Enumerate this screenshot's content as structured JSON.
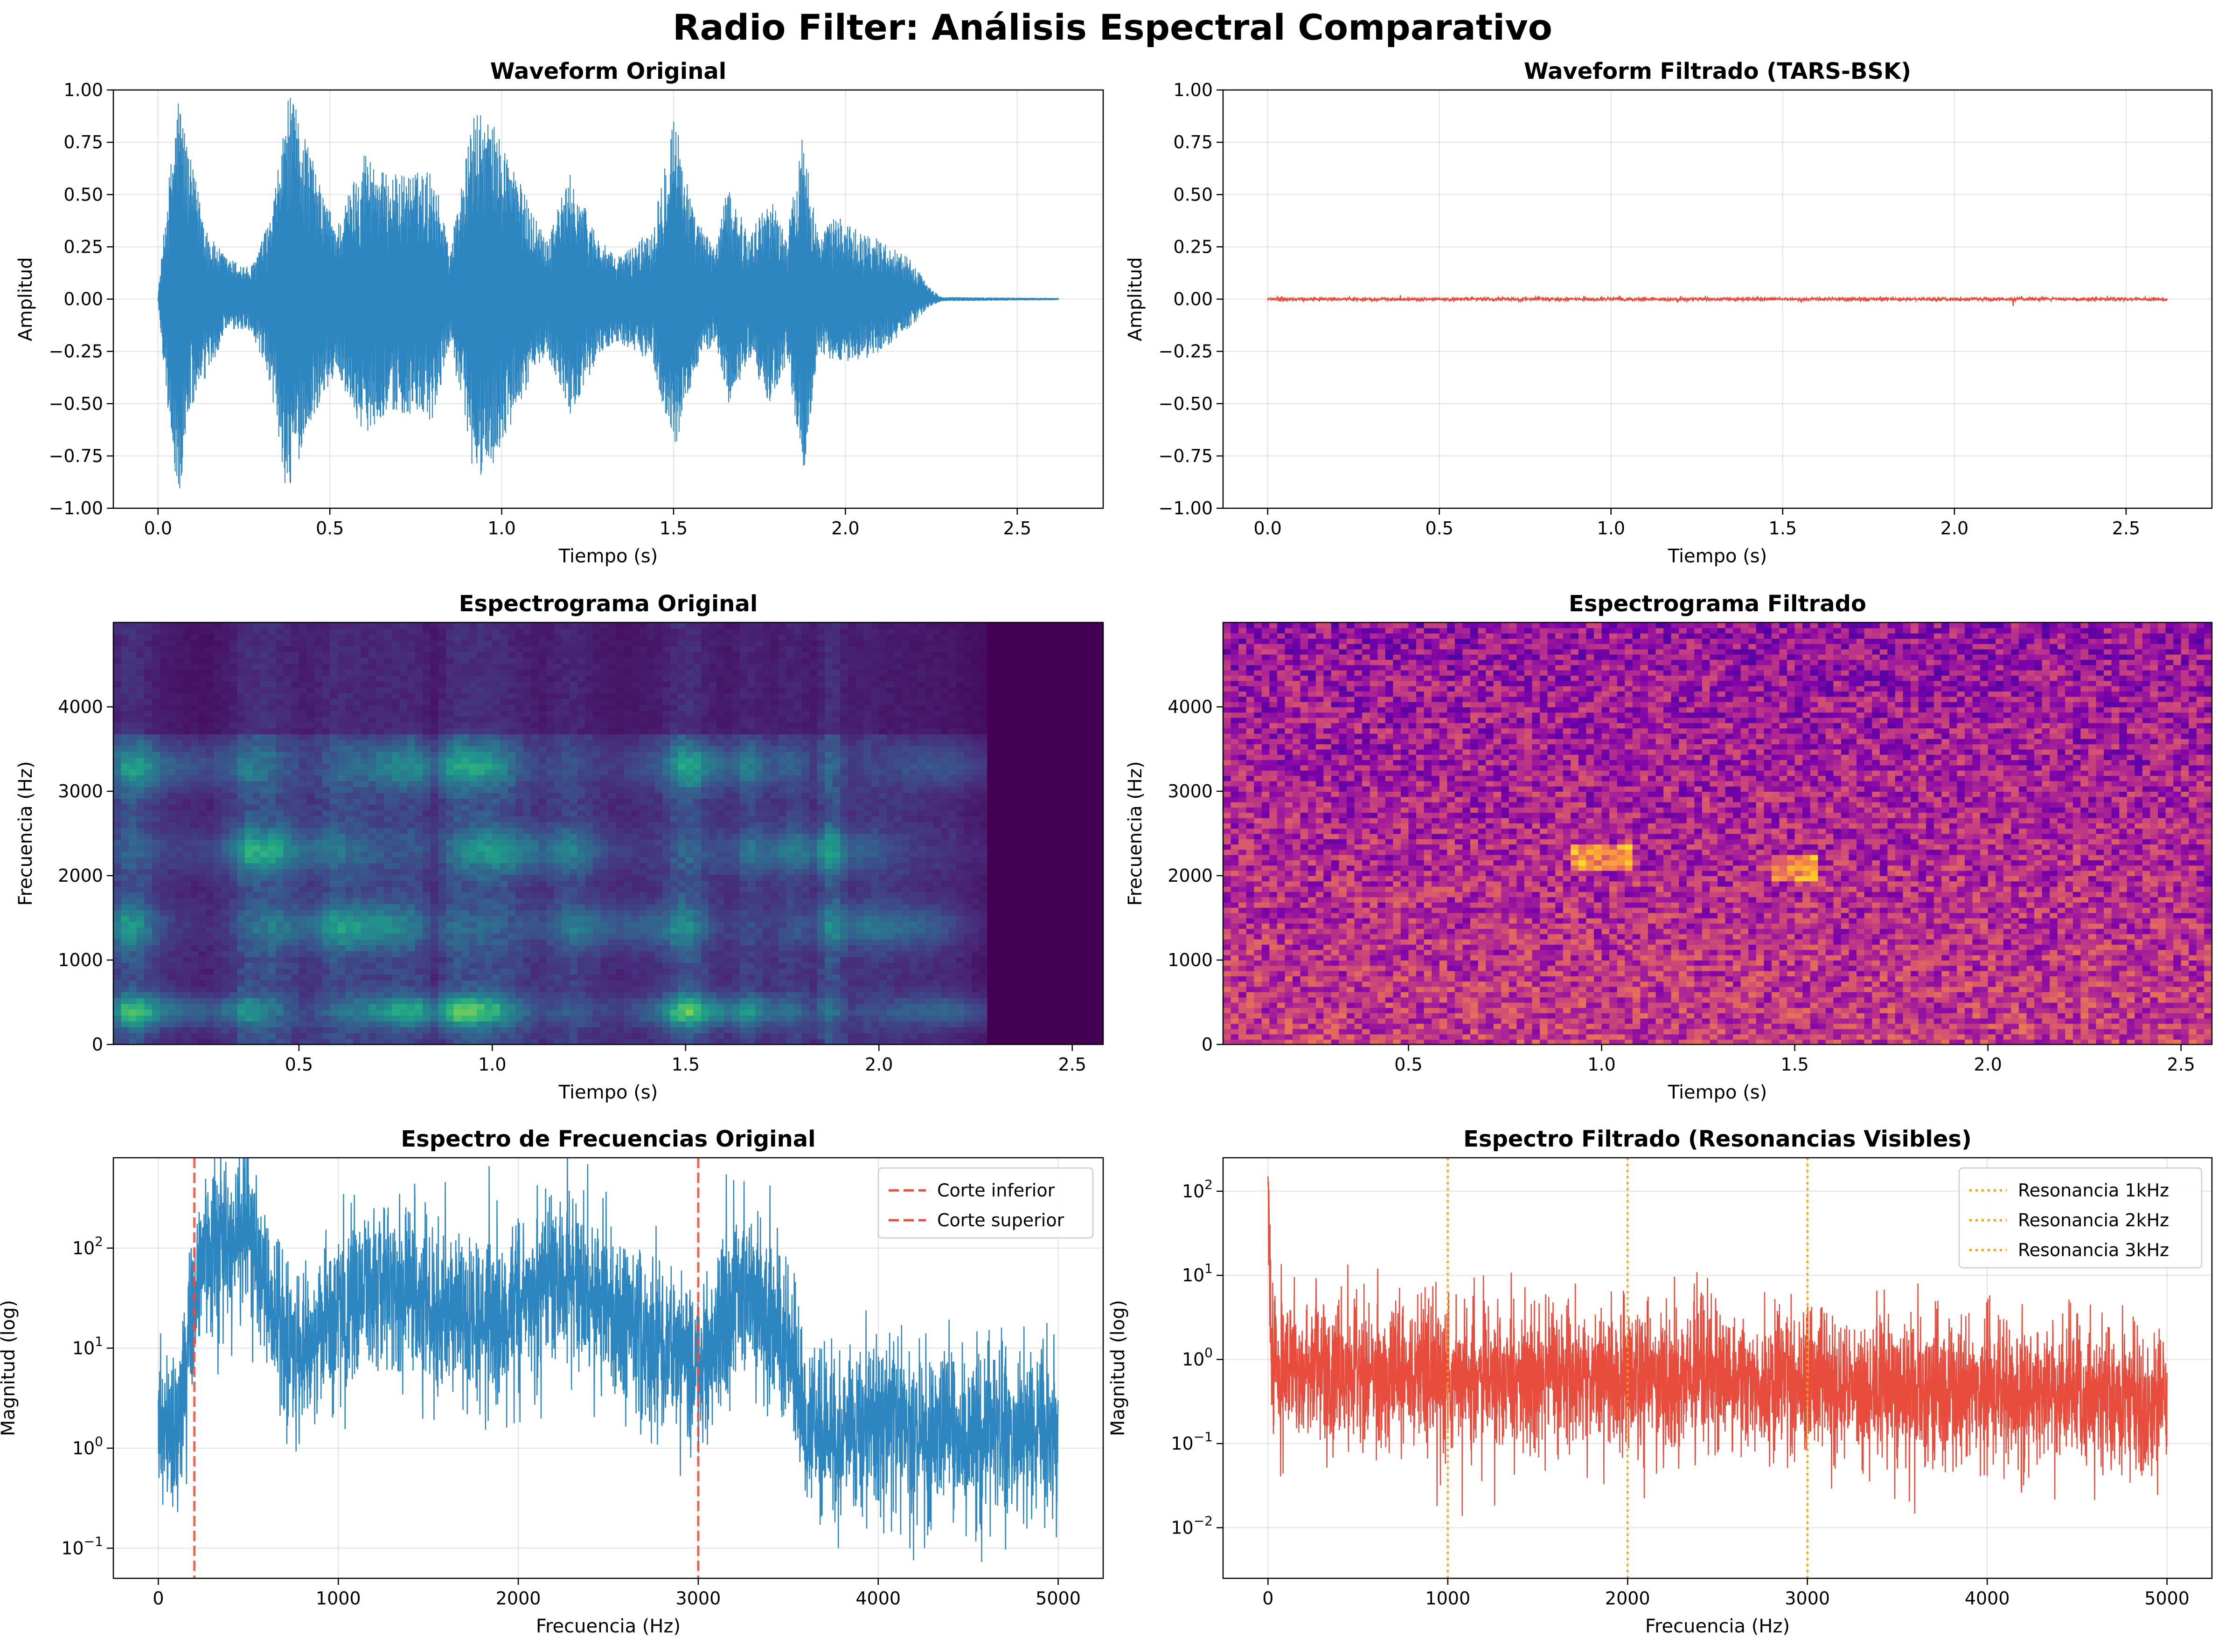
{
  "figure_title": "Radio Filter: Análisis Espectral Comparativo",
  "chart_data": [
    {
      "type": "line",
      "title": "Waveform Original",
      "xlabel": "Tiempo (s)",
      "ylabel": "Amplitud",
      "xlim": [
        -0.13,
        2.75
      ],
      "ylim": [
        -1.0,
        1.0
      ],
      "xticks": [
        "0.0",
        "0.5",
        "1.0",
        "1.5",
        "2.0",
        "2.5"
      ],
      "yticks": [
        "−1.00",
        "−0.75",
        "−0.50",
        "−0.25",
        "0.00",
        "0.25",
        "0.50",
        "0.75",
        "1.00"
      ],
      "grid": true,
      "color": "#2e86c1",
      "duration_s": 2.62,
      "envelope": {
        "t": [
          0.0,
          0.03,
          0.06,
          0.09,
          0.15,
          0.2,
          0.27,
          0.33,
          0.38,
          0.42,
          0.47,
          0.52,
          0.6,
          0.66,
          0.72,
          0.8,
          0.85,
          0.92,
          0.97,
          1.02,
          1.08,
          1.13,
          1.2,
          1.28,
          1.33,
          1.38,
          1.44,
          1.5,
          1.56,
          1.62,
          1.66,
          1.72,
          1.78,
          1.83,
          1.88,
          1.92,
          1.97,
          2.02,
          2.08,
          2.14,
          2.2,
          2.24,
          2.28,
          2.62
        ],
        "upper": [
          0.02,
          0.55,
          1.0,
          0.7,
          0.3,
          0.2,
          0.15,
          0.4,
          0.98,
          0.85,
          0.55,
          0.35,
          0.72,
          0.6,
          0.6,
          0.62,
          0.25,
          0.9,
          0.85,
          0.7,
          0.45,
          0.3,
          0.6,
          0.3,
          0.2,
          0.25,
          0.35,
          0.92,
          0.4,
          0.25,
          0.55,
          0.3,
          0.5,
          0.3,
          0.85,
          0.3,
          0.4,
          0.35,
          0.3,
          0.25,
          0.18,
          0.06,
          0.01,
          0.005
        ],
        "lower": [
          -0.02,
          -0.55,
          -1.0,
          -0.55,
          -0.35,
          -0.15,
          -0.15,
          -0.45,
          -1.0,
          -0.7,
          -0.5,
          -0.35,
          -0.65,
          -0.55,
          -0.55,
          -0.6,
          -0.2,
          -0.88,
          -0.8,
          -0.65,
          -0.4,
          -0.25,
          -0.55,
          -0.28,
          -0.2,
          -0.25,
          -0.3,
          -0.75,
          -0.35,
          -0.2,
          -0.5,
          -0.3,
          -0.5,
          -0.3,
          -0.85,
          -0.25,
          -0.3,
          -0.3,
          -0.28,
          -0.2,
          -0.12,
          -0.04,
          -0.01,
          -0.005
        ]
      }
    },
    {
      "type": "line",
      "title": "Waveform Filtrado (TARS-BSK)",
      "xlabel": "Tiempo (s)",
      "ylabel": "Amplitud",
      "xlim": [
        -0.13,
        2.75
      ],
      "ylim": [
        -1.0,
        1.0
      ],
      "xticks": [
        "0.0",
        "0.5",
        "1.0",
        "1.5",
        "2.0",
        "2.5"
      ],
      "yticks": [
        "−1.00",
        "−0.75",
        "−0.50",
        "−0.25",
        "0.00",
        "0.25",
        "0.50",
        "0.75",
        "1.00"
      ],
      "grid": true,
      "color": "#e74c3c",
      "duration_s": 2.62,
      "approx_amplitude": 0.01
    },
    {
      "type": "heatmap",
      "title": "Espectrograma Original",
      "xlabel": "Tiempo (s)",
      "ylabel": "Frecuencia (Hz)",
      "xlim": [
        0.02,
        2.58
      ],
      "ylim": [
        0,
        5000
      ],
      "xticks": [
        "0.5",
        "1.0",
        "1.5",
        "2.0",
        "2.5"
      ],
      "yticks": [
        "0",
        "1000",
        "2000",
        "3000",
        "4000"
      ],
      "colormap": "viridis",
      "signal_end_s": 2.28,
      "formant_bands_hz": [
        400,
        1400,
        2300,
        3300
      ]
    },
    {
      "type": "heatmap",
      "title": "Espectrograma Filtrado",
      "xlabel": "Tiempo (s)",
      "ylabel": "Frecuencia (Hz)",
      "xlim": [
        0.02,
        2.58
      ],
      "ylim": [
        0,
        5000
      ],
      "xticks": [
        "0.5",
        "1.0",
        "1.5",
        "2.0",
        "2.5"
      ],
      "yticks": [
        "0",
        "1000",
        "2000",
        "3000",
        "4000"
      ],
      "colormap": "plasma"
    },
    {
      "type": "line",
      "title": "Espectro de Frecuencias Original",
      "xlabel": "Frecuencia (Hz)",
      "ylabel": "Magnitud (log)",
      "xlim": [
        -250,
        5250
      ],
      "ylim": [
        0.05,
        800
      ],
      "yscale": "log",
      "xticks": [
        "0",
        "1000",
        "2000",
        "3000",
        "4000",
        "5000"
      ],
      "grid": true,
      "color": "#2e86c1",
      "profile": {
        "f": [
          0,
          100,
          200,
          300,
          500,
          600,
          800,
          1000,
          1300,
          1600,
          1900,
          2100,
          2300,
          2600,
          2900,
          3000,
          3200,
          3500,
          3600,
          4000,
          4500,
          5000
        ],
        "mag": [
          1.5,
          1.2,
          40,
          120,
          150,
          30,
          8,
          25,
          40,
          20,
          15,
          40,
          60,
          15,
          10,
          6,
          40,
          12,
          1.5,
          1.5,
          1.5,
          1.5
        ]
      },
      "vlines": [
        {
          "x": 200,
          "color": "#e74c3c",
          "style": "dashed"
        },
        {
          "x": 3000,
          "color": "#e74c3c",
          "style": "dashed"
        }
      ],
      "legend": {
        "position": "upper right",
        "entries": [
          "Corte inferior",
          "Corte superior"
        ]
      }
    },
    {
      "type": "line",
      "title": "Espectro Filtrado (Resonancias Visibles)",
      "xlabel": "Frecuencia (Hz)",
      "ylabel": "Magnitud (log)",
      "xlim": [
        -250,
        5250
      ],
      "ylim": [
        0.0025,
        250
      ],
      "yscale": "log",
      "xticks": [
        "0",
        "1000",
        "2000",
        "3000",
        "4000",
        "5000"
      ],
      "grid": true,
      "color": "#e74c3c",
      "profile": {
        "f": [
          0,
          20,
          60,
          1000,
          2000,
          2500,
          3000,
          4000,
          5000
        ],
        "mag": [
          150,
          1.5,
          0.8,
          0.65,
          0.6,
          0.6,
          0.5,
          0.4,
          0.3
        ]
      },
      "vlines": [
        {
          "x": 1000,
          "color": "#f5a300",
          "style": "dotted"
        },
        {
          "x": 2000,
          "color": "#f5a300",
          "style": "dotted"
        },
        {
          "x": 3000,
          "color": "#f5a300",
          "style": "dotted"
        }
      ],
      "legend": {
        "position": "upper right",
        "entries": [
          "Resonancia 1kHz",
          "Resonancia 2kHz",
          "Resonancia 3kHz"
        ]
      }
    }
  ]
}
